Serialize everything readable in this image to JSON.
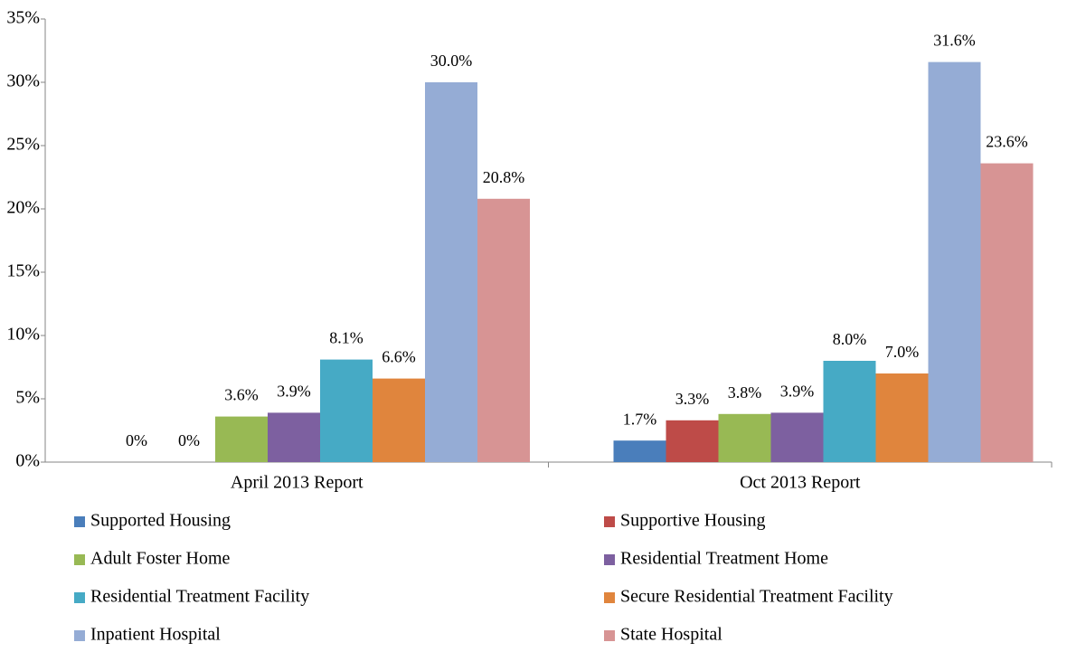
{
  "chart_data": {
    "type": "bar",
    "categories": [
      "April 2013 Report",
      "Oct 2013 Report"
    ],
    "series": [
      {
        "name": "Supported Housing",
        "color": "#4a7ebb",
        "values": [
          0,
          1.7
        ],
        "value_labels": [
          "0%",
          "1.7%"
        ]
      },
      {
        "name": "Supportive Housing",
        "color": "#be4b48",
        "values": [
          0,
          3.3
        ],
        "value_labels": [
          "0%",
          "3.3%"
        ]
      },
      {
        "name": "Adult Foster Home",
        "color": "#98b954",
        "values": [
          3.6,
          3.8
        ],
        "value_labels": [
          "3.6%",
          "3.8%"
        ]
      },
      {
        "name": "Residential Treatment Home",
        "color": "#7d60a0",
        "values": [
          3.9,
          3.9
        ],
        "value_labels": [
          "3.9%",
          "3.9%"
        ]
      },
      {
        "name": "Residential Treatment Facility",
        "color": "#46aac5",
        "values": [
          8.1,
          8.0
        ],
        "value_labels": [
          "8.1%",
          "8.0%"
        ]
      },
      {
        "name": "Secure Residential Treatment Facility",
        "color": "#e0853d",
        "values": [
          6.6,
          7.0
        ],
        "value_labels": [
          "6.6%",
          "7.0%"
        ]
      },
      {
        "name": "Inpatient Hospital",
        "color": "#95acd5",
        "values": [
          30.0,
          31.6
        ],
        "value_labels": [
          "30.0%",
          "31.6%"
        ]
      },
      {
        "name": "State Hospital",
        "color": "#d79494",
        "values": [
          20.8,
          23.6
        ],
        "value_labels": [
          "20.8%",
          "23.6%"
        ]
      }
    ],
    "ylim": [
      0,
      35
    ],
    "yticks": [
      {
        "value": 0,
        "label": "0%"
      },
      {
        "value": 5,
        "label": "5%"
      },
      {
        "value": 10,
        "label": "10%"
      },
      {
        "value": 15,
        "label": "15%"
      },
      {
        "value": 20,
        "label": "20%"
      },
      {
        "value": 25,
        "label": "25%"
      },
      {
        "value": 30,
        "label": "30%"
      },
      {
        "value": 35,
        "label": "35%"
      }
    ],
    "grid": false,
    "legend": "bottom"
  }
}
